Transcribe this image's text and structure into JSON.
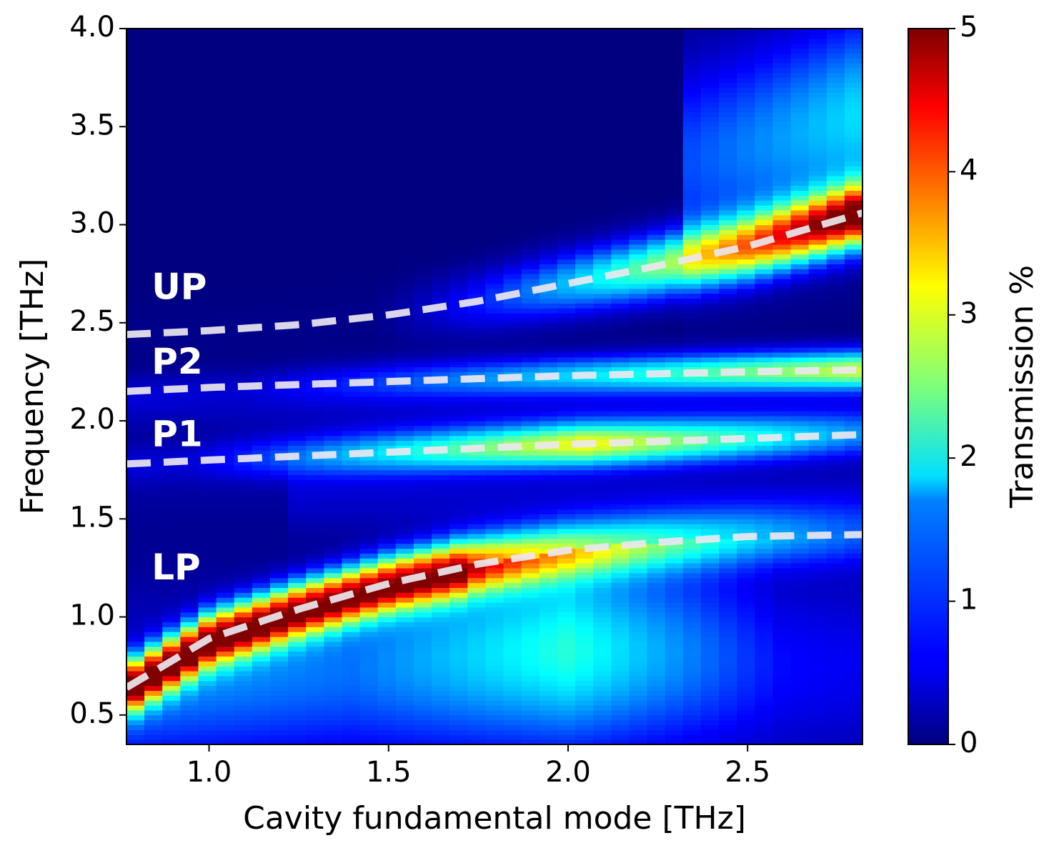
{
  "chart_data": {
    "type": "heatmap",
    "title": "",
    "xlabel": "Cavity fundamental mode [THz]",
    "ylabel": "Frequency [THz]",
    "xlim": [
      0.77,
      2.82
    ],
    "ylim": [
      0.35,
      4.0
    ],
    "x_ticks": [
      "1.0",
      "1.5",
      "2.0",
      "2.5"
    ],
    "x_tick_values": [
      1.0,
      1.5,
      2.0,
      2.5
    ],
    "y_ticks": [
      "0.5",
      "1.0",
      "1.5",
      "2.0",
      "2.5",
      "3.0",
      "3.5",
      "4.0"
    ],
    "y_tick_values": [
      0.5,
      1.0,
      1.5,
      2.0,
      2.5,
      3.0,
      3.5,
      4.0
    ],
    "colorbar": {
      "label": "Transmission %",
      "range": [
        0,
        5
      ],
      "ticks": [
        "0",
        "1",
        "2",
        "3",
        "4",
        "5"
      ],
      "tick_values": [
        0,
        1,
        2,
        3,
        4,
        5
      ],
      "colormap": "jet"
    },
    "grid": false,
    "branches": [
      {
        "name": "UP",
        "label_at": [
          0.84,
          2.67
        ],
        "x": [
          0.77,
          1.0,
          1.25,
          1.5,
          1.75,
          2.0,
          2.25,
          2.5,
          2.82
        ],
        "y": [
          2.44,
          2.46,
          2.49,
          2.54,
          2.61,
          2.7,
          2.79,
          2.89,
          3.06
        ]
      },
      {
        "name": "P2",
        "label_at": [
          0.84,
          2.29
        ],
        "x": [
          0.77,
          1.0,
          1.5,
          2.0,
          2.5,
          2.82
        ],
        "y": [
          2.15,
          2.17,
          2.2,
          2.23,
          2.25,
          2.26
        ]
      },
      {
        "name": "P1",
        "label_at": [
          0.84,
          1.92
        ],
        "x": [
          0.77,
          1.0,
          1.5,
          2.0,
          2.5,
          2.82
        ],
        "y": [
          1.78,
          1.8,
          1.84,
          1.88,
          1.91,
          1.93
        ]
      },
      {
        "name": "LP",
        "label_at": [
          0.84,
          1.24
        ],
        "x": [
          0.77,
          0.9,
          1.0,
          1.25,
          1.5,
          1.75,
          2.0,
          2.25,
          2.5,
          2.82
        ],
        "y": [
          0.64,
          0.78,
          0.89,
          1.04,
          1.17,
          1.27,
          1.34,
          1.38,
          1.41,
          1.42
        ]
      }
    ]
  }
}
